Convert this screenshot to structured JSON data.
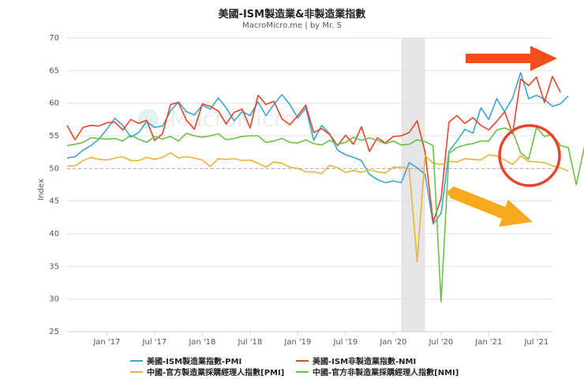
{
  "chart_data": {
    "type": "line",
    "title": "美國-ISM製造業&非製造業指數",
    "subtitle": "MacroMicro.me | by Mr. S",
    "watermark": "MacroMicro",
    "ylabel": "Index",
    "ylim": [
      25,
      70
    ],
    "yticks": [
      25,
      30,
      35,
      40,
      45,
      50,
      55,
      60,
      65,
      70
    ],
    "xlim": [
      "2016-08",
      "2021-09"
    ],
    "xticks": [
      {
        "date": "2017-01",
        "label": "Jan '17"
      },
      {
        "date": "2017-07",
        "label": "Jul '17"
      },
      {
        "date": "2018-01",
        "label": "Jan '18"
      },
      {
        "date": "2018-07",
        "label": "Jul '18"
      },
      {
        "date": "2019-01",
        "label": "Jan '19"
      },
      {
        "date": "2019-07",
        "label": "Jul '19"
      },
      {
        "date": "2020-01",
        "label": "Jan '20"
      },
      {
        "date": "2020-07",
        "label": "Jul '20"
      },
      {
        "date": "2021-01",
        "label": "Jan '21"
      },
      {
        "date": "2021-07",
        "label": "Jul '21"
      }
    ],
    "reference_line": 50,
    "shaded_period": [
      "2020-02",
      "2020-05"
    ],
    "start_month": "2016-08",
    "series": [
      {
        "name": "美國-ISM製造業指數-PMI",
        "color": "#3ba6d0",
        "values": [
          51.6,
          51.8,
          52.8,
          53.5,
          54.5,
          56.0,
          57.7,
          56.6,
          54.8,
          55.5,
          57.2,
          56.3,
          56.5,
          58.8,
          60.2,
          58.7,
          58.2,
          59.7,
          59.1,
          60.8,
          59.3,
          57.3,
          58.7,
          58.1,
          60.2,
          58.1,
          59.8,
          61.3,
          59.8,
          57.7,
          59.3,
          54.3,
          56.6,
          55.3,
          52.8,
          52.1,
          51.7,
          51.2,
          49.1,
          48.3,
          47.8,
          48.1,
          47.8,
          50.9,
          50.1,
          49.1,
          41.5,
          43.1,
          52.6,
          54.2,
          56.0,
          55.4,
          59.3,
          57.5,
          60.7,
          58.7,
          60.8,
          64.7,
          60.7,
          61.2,
          60.6,
          59.5,
          59.9,
          61.1
        ]
      },
      {
        "name": "美國-ISM非製造業指數-NMI",
        "color": "#e8442c",
        "values": [
          56.6,
          54.4,
          56.3,
          56.6,
          56.5,
          57.0,
          57.1,
          55.9,
          57.5,
          56.9,
          57.4,
          54.3,
          55.3,
          59.8,
          60.1,
          57.4,
          56.0,
          59.9,
          59.5,
          58.8,
          56.8,
          58.6,
          59.1,
          56.2,
          61.2,
          59.8,
          60.3,
          57.6,
          56.7,
          58.1,
          59.7,
          55.5,
          56.1,
          55.2,
          53.5,
          55.1,
          53.7,
          56.4,
          52.6,
          54.7,
          53.9,
          54.9,
          55.0,
          55.5,
          57.3,
          52.5,
          41.8,
          45.4,
          57.1,
          58.1,
          56.9,
          57.8,
          56.6,
          55.9,
          57.2,
          58.7,
          55.3,
          63.7,
          62.7,
          64.0,
          60.1,
          64.1,
          61.7
        ]
      },
      {
        "name": "中國-官方製造業採購經理人指數[PMI]",
        "color": "#e8b43a",
        "values": [
          50.4,
          50.4,
          51.2,
          51.7,
          51.4,
          51.3,
          51.6,
          51.8,
          51.2,
          51.2,
          51.7,
          51.4,
          51.7,
          52.4,
          51.6,
          51.8,
          51.6,
          51.3,
          50.3,
          51.5,
          51.4,
          51.5,
          51.2,
          51.3,
          50.8,
          50.2,
          51.0,
          50.8,
          50.2,
          50.0,
          49.5,
          49.5,
          49.2,
          50.5,
          50.1,
          49.4,
          49.7,
          49.4,
          49.8,
          49.5,
          49.3,
          50.2,
          50.2,
          50.0,
          35.7,
          52.0,
          50.8,
          50.6,
          51.1,
          51.0,
          51.5,
          51.4,
          51.3,
          52.1,
          51.9,
          51.3,
          50.6,
          51.9,
          51.1,
          51.0,
          50.9,
          50.4,
          50.1,
          49.6
        ]
      },
      {
        "name": "中國-官方非製造業採購經理人指數[NMI]",
        "color": "#6cc04a",
        "values": [
          53.5,
          53.7,
          54.0,
          54.7,
          54.6,
          54.5,
          54.6,
          54.2,
          55.1,
          54.5,
          54.0,
          54.9,
          54.5,
          54.9,
          54.2,
          55.4,
          55.0,
          54.8,
          55.0,
          55.3,
          54.4,
          54.6,
          54.9,
          55.0,
          55.0,
          54.0,
          54.2,
          54.6,
          54.0,
          53.9,
          54.4,
          53.8,
          53.6,
          54.3,
          53.7,
          54.0,
          54.8,
          54.3,
          54.7,
          54.3,
          53.8,
          54.2,
          53.6,
          53.7,
          54.4,
          54.1,
          53.5,
          29.6,
          52.3,
          53.2,
          53.6,
          53.8,
          54.2,
          54.2,
          55.9,
          56.2,
          55.7,
          52.4,
          51.4,
          56.3,
          54.9,
          55.2,
          53.5,
          53.2,
          47.5,
          53.2
        ]
      }
    ]
  },
  "annotations": {
    "top_arrow_color": "#f04e1c",
    "bottom_arrow_color": "#f6a81e",
    "circle_color": "#e8442c"
  }
}
